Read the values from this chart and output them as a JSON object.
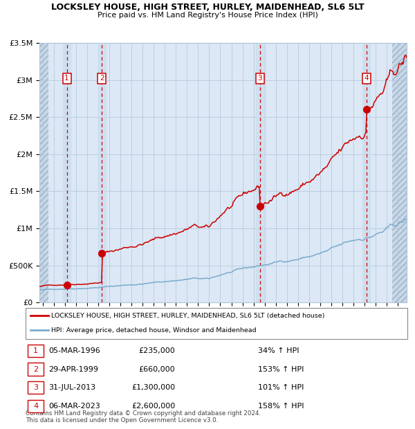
{
  "title": "LOCKSLEY HOUSE, HIGH STREET, HURLEY, MAIDENHEAD, SL6 5LT",
  "subtitle": "Price paid vs. HM Land Registry's House Price Index (HPI)",
  "legend_line1": "LOCKSLEY HOUSE, HIGH STREET, HURLEY, MAIDENHEAD, SL6 5LT (detached house)",
  "legend_line2": "HPI: Average price, detached house, Windsor and Maidenhead",
  "transactions": [
    {
      "num": 1,
      "date": "05-MAR-1996",
      "price": 235000,
      "pct": "34%",
      "year": 1996.17
    },
    {
      "num": 2,
      "date": "29-APR-1999",
      "price": 660000,
      "pct": "153%",
      "year": 1999.32
    },
    {
      "num": 3,
      "date": "31-JUL-2013",
      "price": 1300000,
      "pct": "101%",
      "year": 2013.58
    },
    {
      "num": 4,
      "date": "06-MAR-2023",
      "price": 2600000,
      "pct": "158%",
      "year": 2023.17
    }
  ],
  "footer": "Contains HM Land Registry data © Crown copyright and database right 2024.\nThis data is licensed under the Open Government Licence v3.0.",
  "red_line_color": "#cc0000",
  "blue_line_color": "#7aabcc",
  "bg_color": "#dce8f5",
  "hatch_bg": "#c8d8e8",
  "grid_color": "#b0c4d8",
  "dashed_color": "#cc0000",
  "ylim": [
    0,
    3500000
  ],
  "xlim_start": 1993.7,
  "xlim_end": 2026.8,
  "hatch_left_end": 1994.5,
  "hatch_right_start": 2025.5
}
